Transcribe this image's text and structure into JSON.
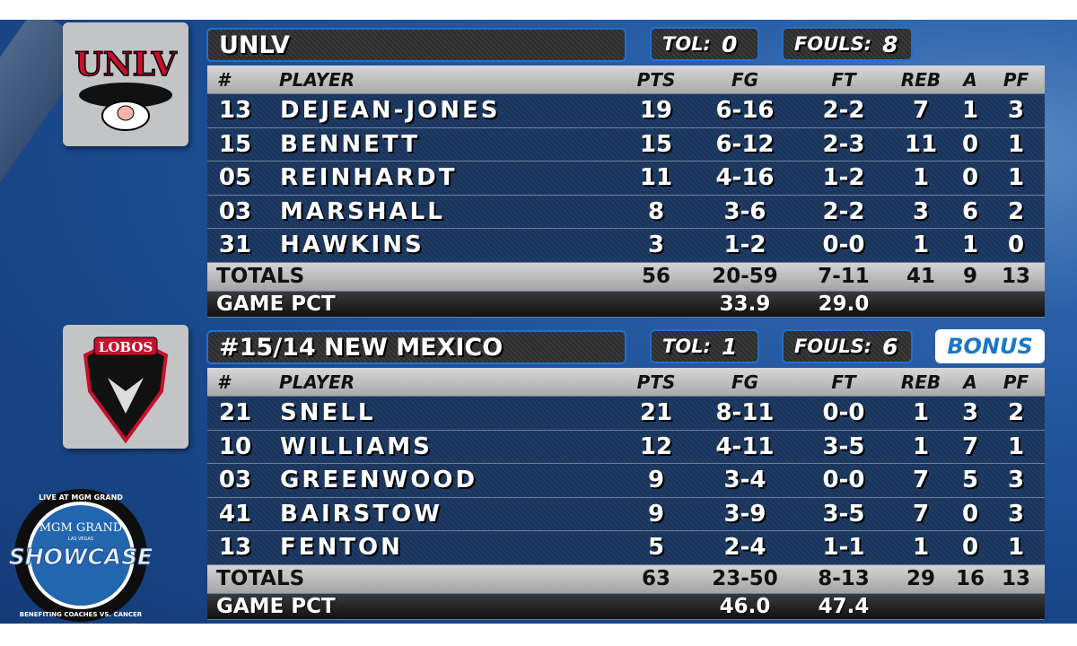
{
  "columns": {
    "num": "#",
    "player": "PLAYER",
    "pts": "PTS",
    "fg": "FG",
    "ft": "FT",
    "reb": "REB",
    "a": "A",
    "pf": "PF"
  },
  "teams": [
    {
      "name": "UNLV",
      "logo_text": "UNLV",
      "tol_label": "TOL:",
      "tol": "0",
      "fouls_label": "FOULS:",
      "fouls": "8",
      "bonus": null,
      "players": [
        {
          "num": "13",
          "name": "DEJEAN-JONES",
          "pts": "19",
          "fg": "6-16",
          "ft": "2-2",
          "reb": "7",
          "a": "1",
          "pf": "3"
        },
        {
          "num": "15",
          "name": "BENNETT",
          "pts": "15",
          "fg": "6-12",
          "ft": "2-3",
          "reb": "11",
          "a": "0",
          "pf": "1"
        },
        {
          "num": "05",
          "name": "REINHARDT",
          "pts": "11",
          "fg": "4-16",
          "ft": "1-2",
          "reb": "1",
          "a": "0",
          "pf": "1"
        },
        {
          "num": "03",
          "name": "MARSHALL",
          "pts": "8",
          "fg": "3-6",
          "ft": "2-2",
          "reb": "3",
          "a": "6",
          "pf": "2"
        },
        {
          "num": "31",
          "name": "HAWKINS",
          "pts": "3",
          "fg": "1-2",
          "ft": "0-0",
          "reb": "1",
          "a": "1",
          "pf": "0"
        }
      ],
      "totals": {
        "label": "TOTALS",
        "pts": "56",
        "fg": "20-59",
        "ft": "7-11",
        "reb": "41",
        "a": "9",
        "pf": "13"
      },
      "pct": {
        "label": "GAME PCT",
        "fg": "33.9",
        "ft": "29.0"
      }
    },
    {
      "name": "#15/14 NEW MEXICO",
      "logo_text": "LOBOS",
      "tol_label": "TOL:",
      "tol": "1",
      "fouls_label": "FOULS:",
      "fouls": "6",
      "bonus": "BONUS",
      "players": [
        {
          "num": "21",
          "name": "SNELL",
          "pts": "21",
          "fg": "8-11",
          "ft": "0-0",
          "reb": "1",
          "a": "3",
          "pf": "2"
        },
        {
          "num": "10",
          "name": "WILLIAMS",
          "pts": "12",
          "fg": "4-11",
          "ft": "3-5",
          "reb": "1",
          "a": "7",
          "pf": "1"
        },
        {
          "num": "03",
          "name": "GREENWOOD",
          "pts": "9",
          "fg": "3-4",
          "ft": "0-0",
          "reb": "7",
          "a": "5",
          "pf": "3"
        },
        {
          "num": "41",
          "name": "BAIRSTOW",
          "pts": "9",
          "fg": "3-9",
          "ft": "3-5",
          "reb": "7",
          "a": "0",
          "pf": "3"
        },
        {
          "num": "13",
          "name": "FENTON",
          "pts": "5",
          "fg": "2-4",
          "ft": "1-1",
          "reb": "1",
          "a": "0",
          "pf": "1"
        }
      ],
      "totals": {
        "label": "TOTALS",
        "pts": "63",
        "fg": "23-50",
        "ft": "8-13",
        "reb": "29",
        "a": "16",
        "pf": "13"
      },
      "pct": {
        "label": "GAME PCT",
        "fg": "46.0",
        "ft": "47.4"
      }
    }
  ],
  "event_logo": {
    "top": "LIVE AT MGM GRAND",
    "brand": "MGM GRAND",
    "sub": "LAS VEGAS",
    "name": "SHOWCASE",
    "bottom": "BENEFITING COACHES VS. CANCER"
  },
  "colors": {
    "accent": "#1e6fd0",
    "bonus": "#1a78c8",
    "unlv_red": "#c8102e",
    "lobos_red": "#c8102e"
  }
}
